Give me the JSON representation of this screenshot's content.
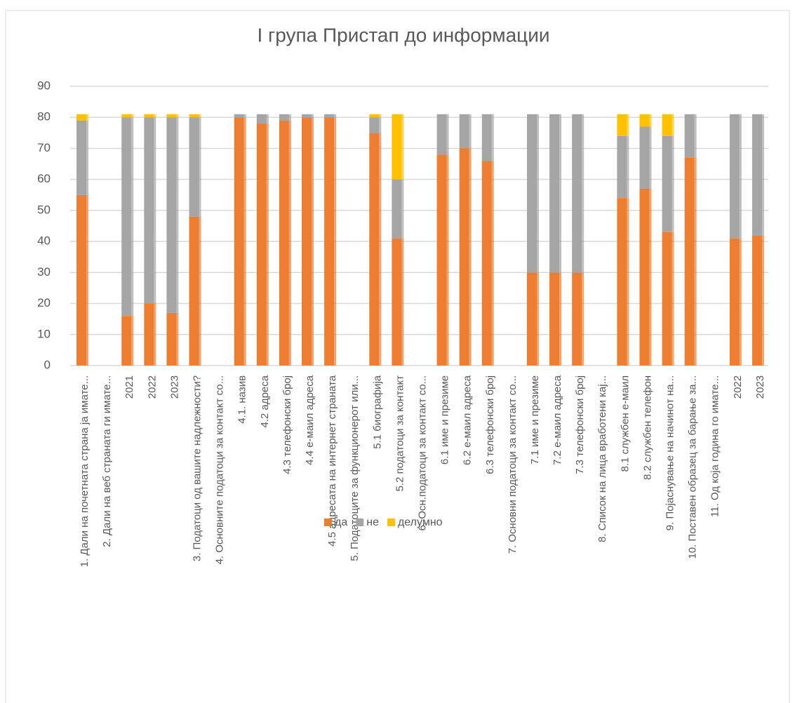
{
  "chart_data": {
    "type": "stacked_bar",
    "title": "I група Пристап до информации",
    "categories": [
      "1. Дали на почетната страна ја имате...",
      "2. Дали на веб страната ги имате...",
      "2021",
      "2022",
      "2023",
      "3. Податоци од вашите надлежности?",
      "4. Основните податоци за контакт со...",
      "4.1. назив",
      "4.2  адреса",
      "4.3  телефонски број",
      "4.4  е-маил адреса",
      "4.5 адресата на интернет страната",
      "5. Податоците за функционерот или...",
      "5.1 биографија",
      "5.2  податоци за контакт",
      "6. Осн.податоци за контакт со...",
      "6.1 име и презиме",
      "6.2 е-маил адреса",
      "6.3 телефонски број",
      "7. Основни податоци за контакт со...",
      "7.1     име и презиме",
      "7.2     е-маил адреса",
      "7.3     телефонски број",
      "8. Список на лица вработени кај...",
      "8.1  службен е-маил",
      "8.2  службен телефон",
      "9. Појаснување на начинот на...",
      "10.  Поставен образец за барање за...",
      "11. Од која година го имате...",
      "2022",
      "2023"
    ],
    "series": [
      {
        "name": "да",
        "color": "#ed7d31",
        "values": [
          55,
          null,
          16,
          20,
          17,
          48,
          null,
          80,
          78,
          79,
          80,
          80,
          null,
          75,
          41,
          null,
          68,
          70,
          66,
          null,
          30,
          30,
          30,
          null,
          54,
          57,
          43,
          67,
          null,
          41,
          42
        ]
      },
      {
        "name": "не",
        "color": "#a5a5a5",
        "values": [
          24,
          null,
          64,
          60,
          63,
          32,
          null,
          1,
          3,
          2,
          1,
          1,
          null,
          5,
          19,
          null,
          13,
          11,
          15,
          null,
          51,
          51,
          51,
          null,
          20,
          20,
          31,
          14,
          null,
          40,
          39
        ]
      },
      {
        "name": "делумно",
        "color": "#ffc000",
        "values": [
          2,
          null,
          1,
          1,
          1,
          1,
          null,
          0,
          0,
          0,
          0,
          0,
          null,
          1,
          21,
          null,
          0,
          0,
          0,
          null,
          0,
          0,
          0,
          null,
          7,
          4,
          7,
          0,
          null,
          0,
          0
        ]
      }
    ],
    "ylim": [
      0,
      90
    ],
    "yticks": [
      0,
      10,
      20,
      30,
      40,
      50,
      60,
      70,
      80,
      90
    ],
    "grid": true,
    "legend": "bottom"
  }
}
